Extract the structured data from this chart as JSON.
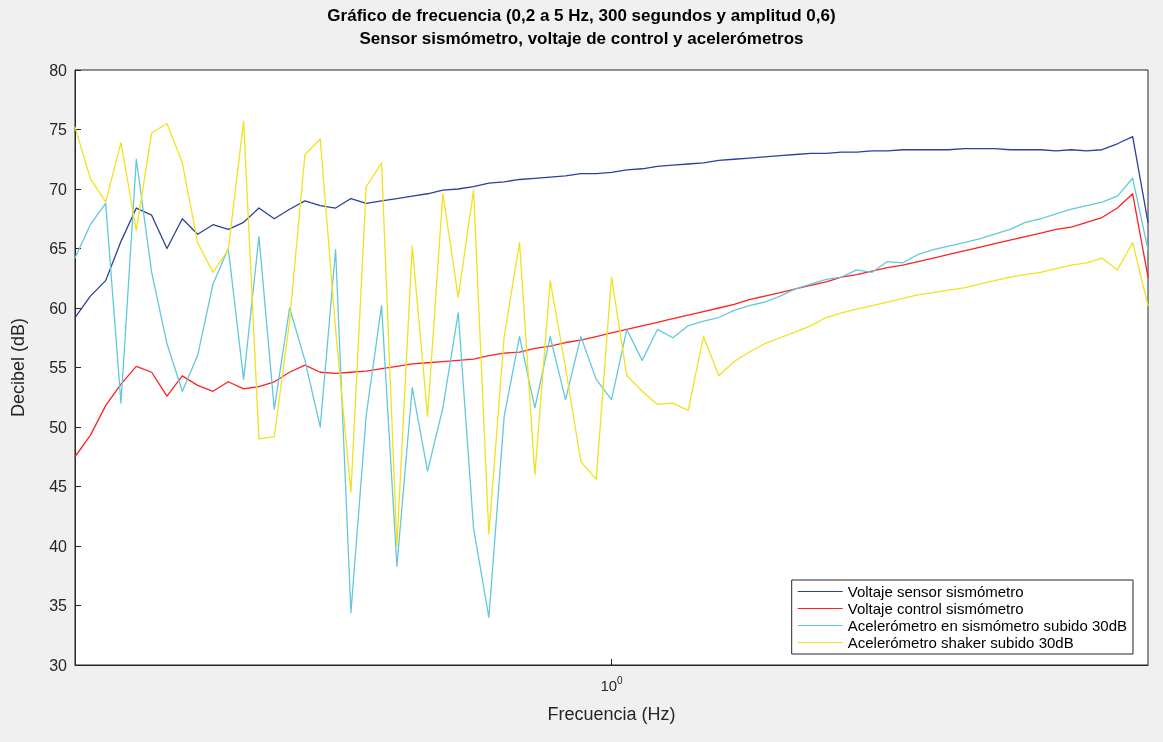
{
  "chart_data": {
    "type": "line",
    "title": "Gráfico de frecuencia (0,2 a 5 Hz, 300 segundos y amplitud 0,6)",
    "subtitle": "Sensor sismómetro, voltaje de control y acelerómetros",
    "xlabel": "Frecuencia (Hz)",
    "ylabel": "Decibel (dB)",
    "grid": false,
    "legend": "bottom right",
    "marker": "none",
    "line_style": "solid",
    "categories": [
      null,
      null,
      null,
      null,
      null,
      null,
      null,
      null,
      null,
      null,
      null,
      null,
      null,
      null,
      null,
      null,
      null,
      null,
      null,
      null,
      null,
      null,
      null,
      null,
      null,
      null,
      null,
      null,
      null,
      null,
      null,
      null,
      null,
      null,
      null,
      "10$^{0}$",
      null,
      null,
      null,
      null,
      null,
      null,
      null,
      null,
      null,
      null,
      null,
      null,
      null,
      null,
      null,
      null,
      null,
      null,
      null,
      null,
      null,
      null,
      null,
      null,
      null,
      null,
      null,
      null,
      null,
      null,
      null,
      null,
      null,
      null,
      null
    ],
    "ylim": [
      30,
      80
    ],
    "yticks": [
      30,
      35,
      40,
      45,
      50,
      55,
      60,
      65,
      70,
      75,
      80
    ],
    "series": [
      {
        "name": "Voltaje sensor sismómetro",
        "color": "#2e3f9e",
        "values": [
          59.2,
          61,
          62.3,
          65.6,
          68.4,
          67.8,
          65,
          67.5,
          66.2,
          67,
          66.6,
          67.2,
          68.4,
          67.5,
          68.3,
          69,
          68.6,
          68.4,
          69.2,
          68.8,
          69,
          69.2,
          69.4,
          69.6,
          69.9,
          70,
          70.2,
          70.5,
          70.6,
          70.8,
          70.9,
          71,
          71.1,
          71.3,
          71.3,
          71.4,
          71.6,
          71.7,
          71.9,
          72,
          72.1,
          72.2,
          72.4,
          72.5,
          72.6,
          72.7,
          72.8,
          72.9,
          73,
          73,
          73.1,
          73.1,
          73.2,
          73.2,
          73.3,
          73.3,
          73.3,
          73.3,
          73.4,
          73.4,
          73.4,
          73.3,
          73.3,
          73.3,
          73.2,
          73.3,
          73.2,
          73.3,
          73.8,
          74.4,
          67.2
        ]
      },
      {
        "name": "Voltaje control sismómetro",
        "color": "#ff2020",
        "values": [
          47.5,
          49.3,
          51.8,
          53.6,
          55.1,
          54.6,
          52.6,
          54.3,
          53.5,
          53,
          53.8,
          53.2,
          53.4,
          53.8,
          54.6,
          55.2,
          54.6,
          54.5,
          54.6,
          54.7,
          54.9,
          55.1,
          55.3,
          55.4,
          55.5,
          55.6,
          55.7,
          56,
          56.2,
          56.3,
          56.6,
          56.8,
          57.1,
          57.3,
          57.6,
          57.9,
          58.2,
          58.5,
          58.8,
          59.1,
          59.4,
          59.7,
          60,
          60.3,
          60.7,
          61,
          61.3,
          61.6,
          61.9,
          62.2,
          62.6,
          62.8,
          63.1,
          63.4,
          63.6,
          63.9,
          64.2,
          64.5,
          64.8,
          65.1,
          65.4,
          65.7,
          66,
          66.3,
          66.6,
          66.8,
          67.2,
          67.6,
          68.4,
          69.6,
          62.6
        ]
      },
      {
        "name": "Acelerómetro en sismómetro subido 30dB",
        "color": "#62c8dc",
        "values": [
          64.2,
          67,
          68.8,
          52,
          72.5,
          63,
          57,
          53,
          56,
          62,
          65,
          54,
          66,
          51.5,
          60,
          55.6,
          50,
          64.9,
          34.4,
          51,
          60.2,
          38.3,
          53.3,
          46.3,
          51.6,
          59.6,
          41.5,
          34,
          50.9,
          57.6,
          51.6,
          57.6,
          52.3,
          57.6,
          54,
          52.3,
          58.2,
          55.6,
          58.2,
          57.5,
          58.5,
          58.9,
          59.2,
          59.8,
          60.2,
          60.5,
          61,
          61.6,
          62,
          62.4,
          62.6,
          63.2,
          63,
          63.9,
          63.8,
          64.5,
          64.9,
          65.2,
          65.5,
          65.8,
          66.2,
          66.6,
          67.2,
          67.5,
          67.9,
          68.3,
          68.6,
          68.9,
          69.4,
          70.9,
          64.9
        ]
      },
      {
        "name": "Acelerómetro shaker subido 30dB",
        "color": "#f2e21e",
        "values": [
          75.2,
          70.9,
          68.9,
          73.9,
          66.5,
          74.7,
          75.5,
          72.2,
          65.5,
          63,
          64.9,
          75.7,
          49,
          49.2,
          58.9,
          72.9,
          74.2,
          58.2,
          44.5,
          70.2,
          72.2,
          40,
          65.2,
          50.9,
          69.6,
          60.9,
          69.9,
          41,
          57.6,
          65.5,
          46,
          62.3,
          55,
          47.1,
          45.6,
          62.6,
          54.3,
          53,
          51.9,
          52,
          51.4,
          57.6,
          54.3,
          55.5,
          56.3,
          57,
          57.5,
          58,
          58.5,
          59.2,
          59.6,
          59.9,
          60.2,
          60.5,
          60.8,
          61.1,
          61.3,
          61.5,
          61.7,
          62,
          62.3,
          62.6,
          62.8,
          63,
          63.3,
          63.6,
          63.8,
          64.2,
          63.2,
          65.5,
          60.2
        ]
      }
    ]
  }
}
